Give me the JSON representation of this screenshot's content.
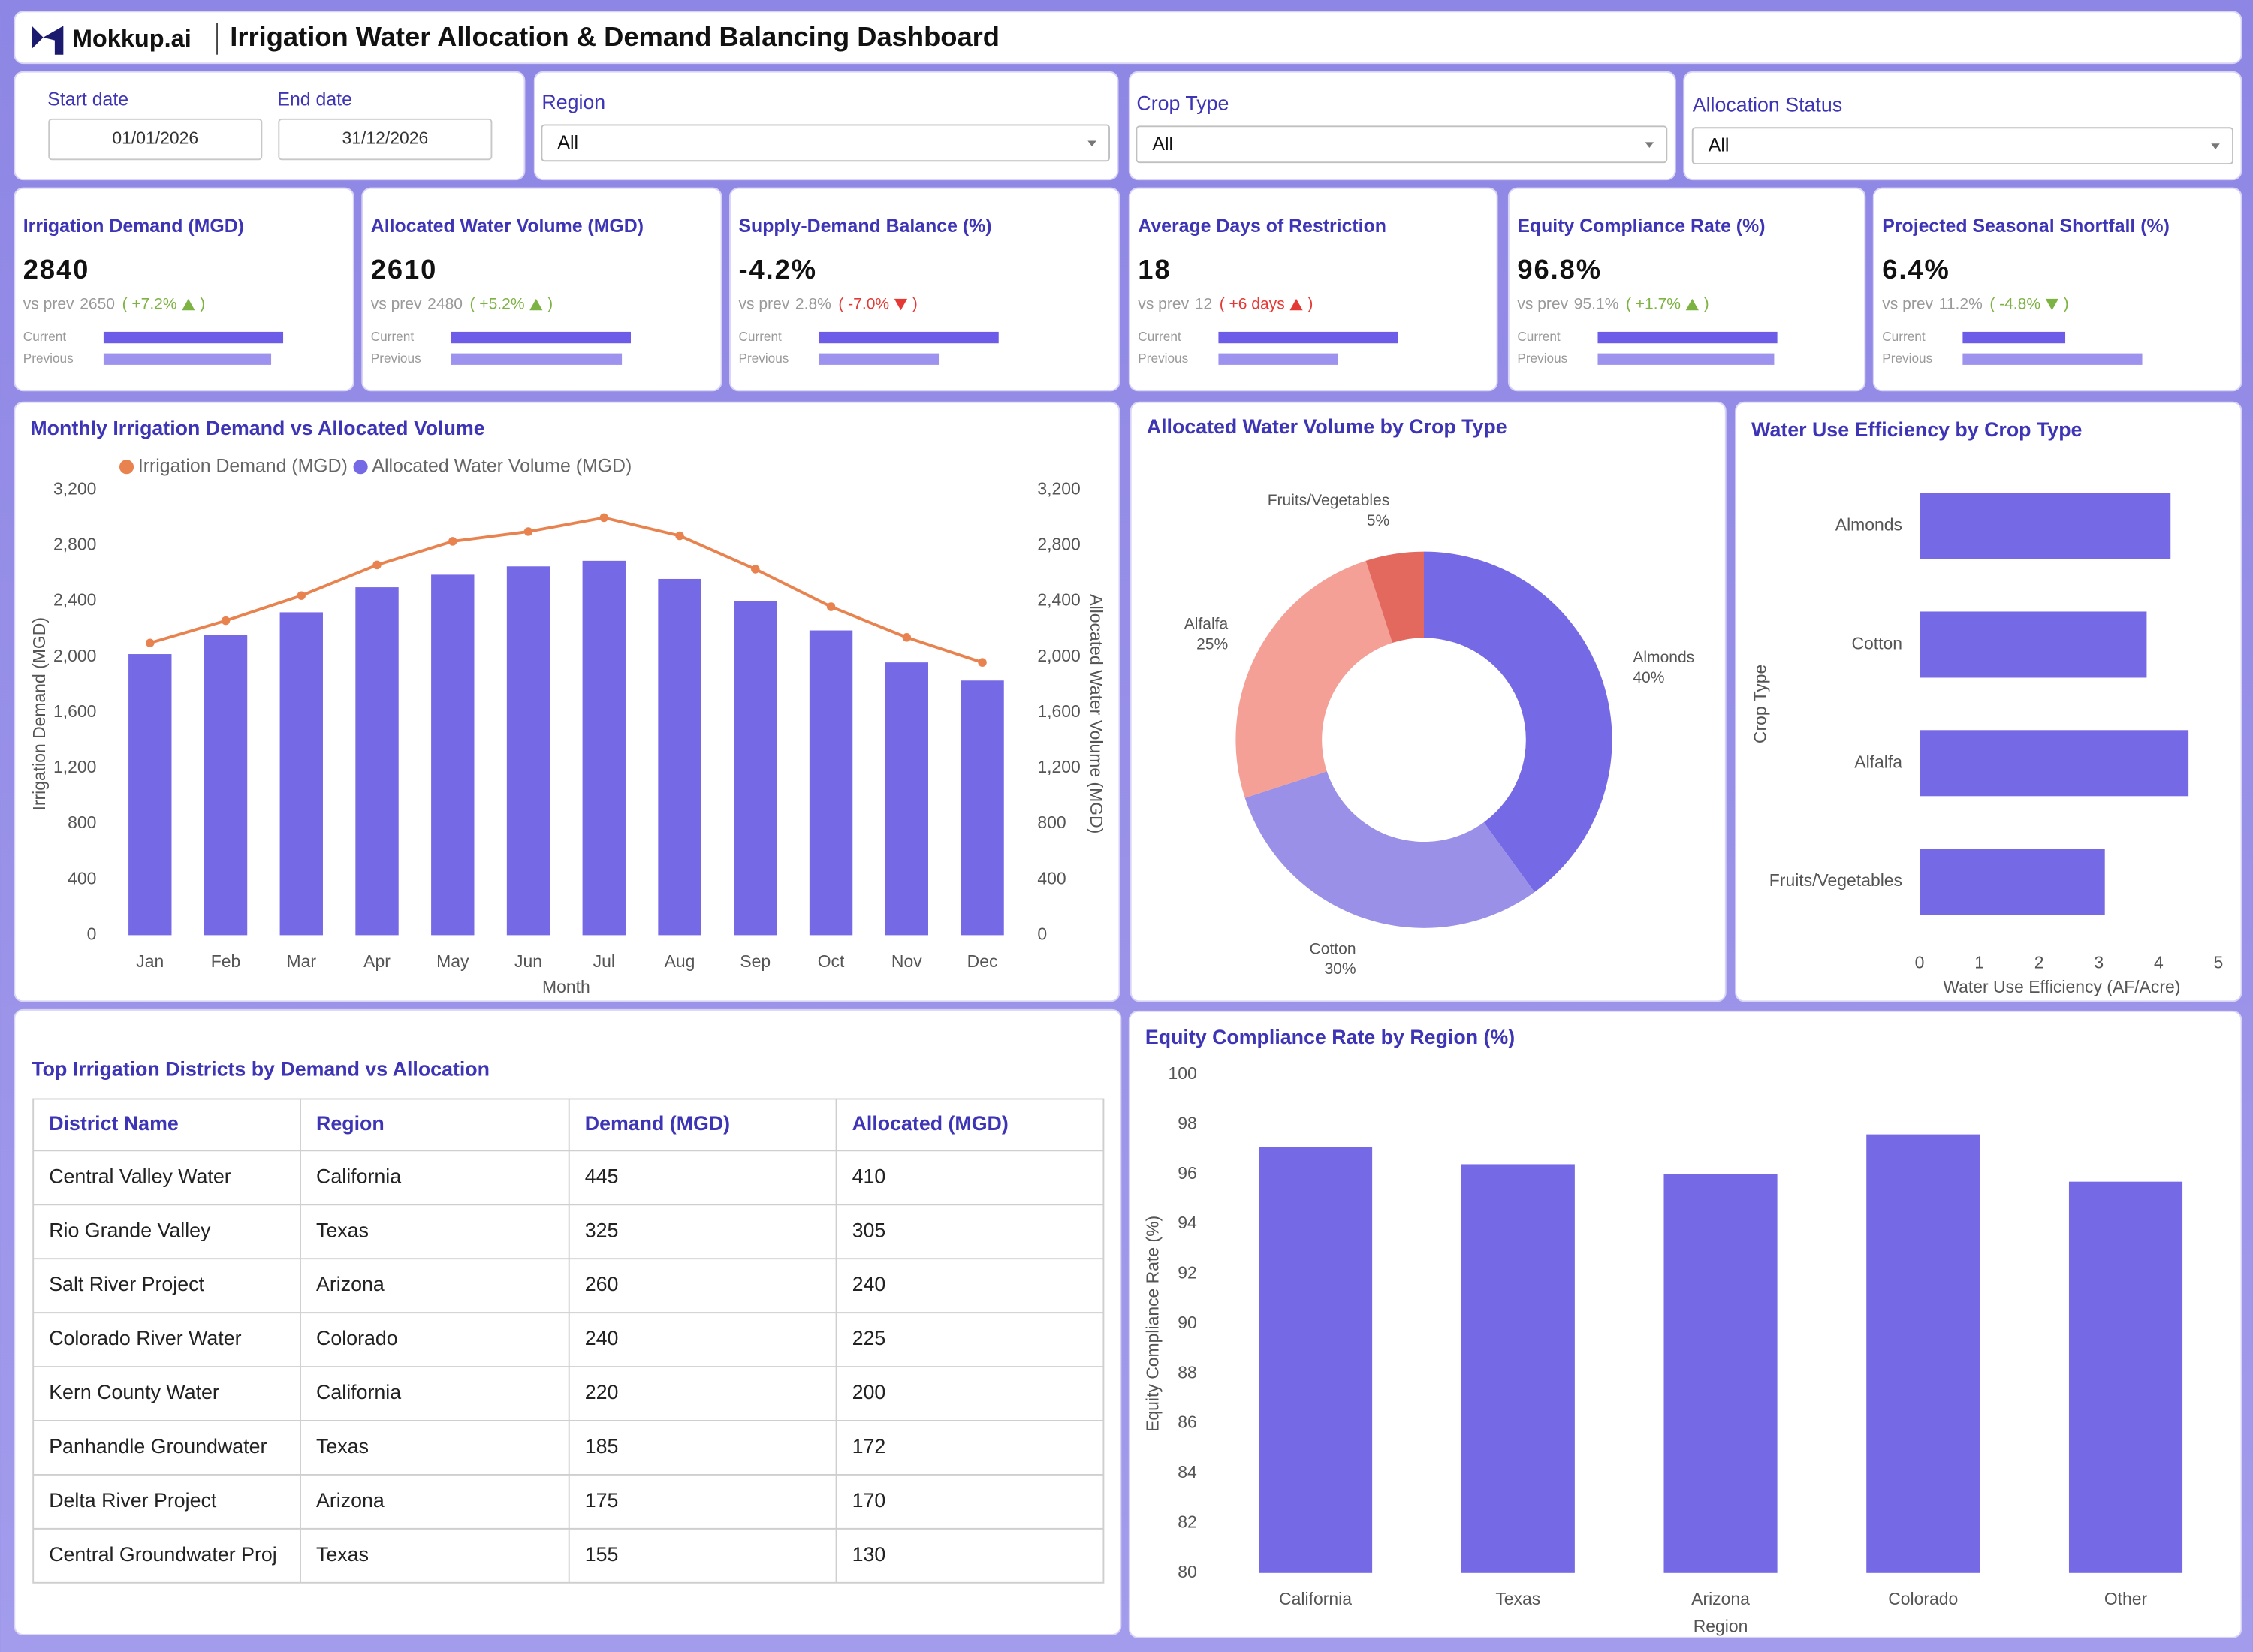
{
  "header": {
    "logo": "Mokkup.ai",
    "title": "Irrigation Water Allocation & Demand Balancing Dashboard"
  },
  "filters": {
    "dates": [
      {
        "label": "Start date",
        "value": "01/01/2026"
      },
      {
        "label": "End date",
        "value": "31/12/2026"
      }
    ],
    "dropdowns": [
      {
        "label": "Region",
        "value": "All"
      },
      {
        "label": "Crop Type",
        "value": "All"
      },
      {
        "label": "Allocation Status",
        "value": "All"
      }
    ]
  },
  "kpis": {
    "prev_prefix": "vs prev",
    "change_brackets": [
      "(",
      ")"
    ],
    "bar_labels": [
      "Current",
      "Previous"
    ],
    "bar_colors": [
      "#6c5ce7",
      "#9d93ee"
    ],
    "items": [
      {
        "title": "Irrigation Demand (MGD)",
        "value": 2840,
        "previous": 2650,
        "change": "+7.2%",
        "trend": "up",
        "change_color": "#7cb342"
      },
      {
        "title": "Allocated Water Volume (MGD)",
        "value": 2610,
        "previous": 2480,
        "change": "+5.2%",
        "trend": "up",
        "change_color": "#7cb342"
      },
      {
        "title": "Supply-Demand Balance (%)",
        "value": -4.2,
        "value_label": "-4.2%",
        "previous": 2.8,
        "previous_label": "2.8%",
        "change": "-7.0%",
        "trend": "down",
        "change_color": "#e53935"
      },
      {
        "title": "Average Days of Restriction",
        "value": 18,
        "previous": 12,
        "change": "+6 days",
        "trend": "up",
        "change_color": "#e53935"
      },
      {
        "title": "Equity Compliance Rate (%)",
        "value": 96.8,
        "value_label": "96.8%",
        "previous": 95.1,
        "previous_label": "95.1%",
        "change": "+1.7%",
        "trend": "up",
        "change_color": "#7cb342"
      },
      {
        "title": "Projected Seasonal Shortfall (%)",
        "value": 6.4,
        "value_label": "6.4%",
        "previous": 11.2,
        "previous_label": "11.2%",
        "change": "-4.8%",
        "trend": "down",
        "change_color": "#7cb342"
      }
    ]
  },
  "chart_data": [
    {
      "type": "combo",
      "title": "Monthly Irrigation Demand vs Allocated Volume",
      "categories": [
        "Jan",
        "Feb",
        "Mar",
        "Apr",
        "May",
        "Jun",
        "Jul",
        "Aug",
        "Sep",
        "Oct",
        "Nov",
        "Dec"
      ],
      "series": [
        {
          "name": "Irrigation Demand (MGD)",
          "type": "line",
          "color": "#e8834f",
          "values": [
            2100,
            2260,
            2440,
            2660,
            2830,
            2900,
            3000,
            2870,
            2630,
            2360,
            2140,
            1960
          ]
        },
        {
          "name": "Allocated Water Volume (MGD)",
          "type": "bar",
          "axis": "y2",
          "color": "#7569e6",
          "values": [
            2020,
            2160,
            2320,
            2500,
            2590,
            2650,
            2690,
            2560,
            2400,
            2190,
            1960,
            1830
          ]
        }
      ],
      "ylim": [
        0,
        3200
      ],
      "yticks": [
        0,
        400,
        800,
        {
          "value": 1200,
          "label": "1,200"
        },
        {
          "value": 1600,
          "label": "1,600"
        },
        {
          "value": 2000,
          "label": "2,000"
        },
        {
          "value": 2400,
          "label": "2,400"
        },
        {
          "value": 2800,
          "label": "2,800"
        },
        {
          "value": 3200,
          "label": "3,200"
        }
      ],
      "y2lim": [
        0,
        3200
      ],
      "y2ticks": [
        0,
        400,
        800,
        {
          "value": 1200,
          "label": "1,200"
        },
        {
          "value": 1600,
          "label": "1,600"
        },
        {
          "value": 2000,
          "label": "2,000"
        },
        {
          "value": 2400,
          "label": "2,400"
        },
        {
          "value": 2800,
          "label": "2,800"
        },
        {
          "value": 3200,
          "label": "3,200"
        }
      ],
      "ylabel": "Irrigation Demand (MGD)",
      "y2label": "Allocated Water Volume (MGD)",
      "xlabel": "Month",
      "legend": "top-left",
      "grid": false
    },
    {
      "type": "pie",
      "title": "Allocated Water Volume by Crop Type",
      "donut": true,
      "categories": [
        "Almonds",
        "Cotton",
        "Alfalfa",
        "Fruits/Vegetables"
      ],
      "values": [
        40,
        30,
        25,
        5
      ],
      "value_labels": [
        "40%",
        "30%",
        "25%",
        "5%"
      ],
      "colors": [
        "#7569e6",
        "#9b90e8",
        "#f4a097",
        "#e3695e"
      ]
    },
    {
      "type": "bar",
      "horizontal": true,
      "title": "Water Use Efficiency by Crop Type",
      "categories": [
        "Almonds",
        "Cotton",
        "Alfalfa",
        "Fruits/Vegetables"
      ],
      "values": [
        4.2,
        3.8,
        4.5,
        3.1
      ],
      "color": "#7569e6",
      "xlim": [
        0,
        5
      ],
      "xticks": [
        0,
        1,
        2,
        3,
        4,
        5
      ],
      "xlabel": "Water Use Efficiency (AF/Acre)",
      "ylabel": "Crop Type",
      "grid": false
    },
    {
      "type": "bar",
      "title": "Equity Compliance Rate by Region (%)",
      "categories": [
        "California",
        "Texas",
        "Arizona",
        "Colorado",
        "Other"
      ],
      "values": [
        97.1,
        96.4,
        96.0,
        97.6,
        95.7
      ],
      "color": "#7569e6",
      "ylim": [
        80,
        100
      ],
      "yticks": [
        80,
        82,
        84,
        86,
        88,
        90,
        92,
        94,
        96,
        98,
        100
      ],
      "xlabel": "Region",
      "ylabel": "Equity Compliance Rate (%)",
      "grid": false
    }
  ],
  "table": {
    "title": "Top Irrigation Districts by Demand vs Allocation",
    "columns": [
      "District Name",
      "Region",
      "Demand (MGD)",
      "Allocated (MGD)"
    ],
    "rows": [
      [
        "Central Valley Water",
        "California",
        445,
        410
      ],
      [
        "Rio Grande Valley",
        "Texas",
        325,
        305
      ],
      [
        "Salt River Project",
        "Arizona",
        260,
        240
      ],
      [
        "Colorado River Water",
        "Colorado",
        240,
        225
      ],
      [
        "Kern County Water",
        "California",
        220,
        200
      ],
      [
        "Panhandle Groundwater",
        "Texas",
        185,
        172
      ],
      [
        "Delta River Project",
        "Arizona",
        175,
        170
      ],
      [
        "Central Groundwater Proj",
        "Texas",
        155,
        130
      ]
    ]
  }
}
